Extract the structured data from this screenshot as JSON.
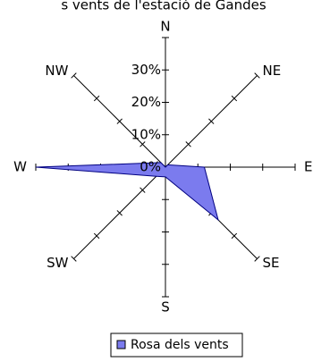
{
  "chart_data": {
    "type": "radar",
    "title": "s vents de l'estació de Gandes",
    "directions": [
      "N",
      "NE",
      "E",
      "SE",
      "S",
      "SW",
      "W",
      "NW"
    ],
    "radial_ticks": [
      "0%",
      "10%",
      "20%",
      "30%"
    ],
    "series": [
      {
        "name": "Rosa dels vents",
        "color": "#7b7bee",
        "values": [
          0,
          1,
          12,
          23,
          3,
          4,
          40,
          2
        ]
      }
    ],
    "rmax": 40,
    "legend_position": "bottom"
  }
}
